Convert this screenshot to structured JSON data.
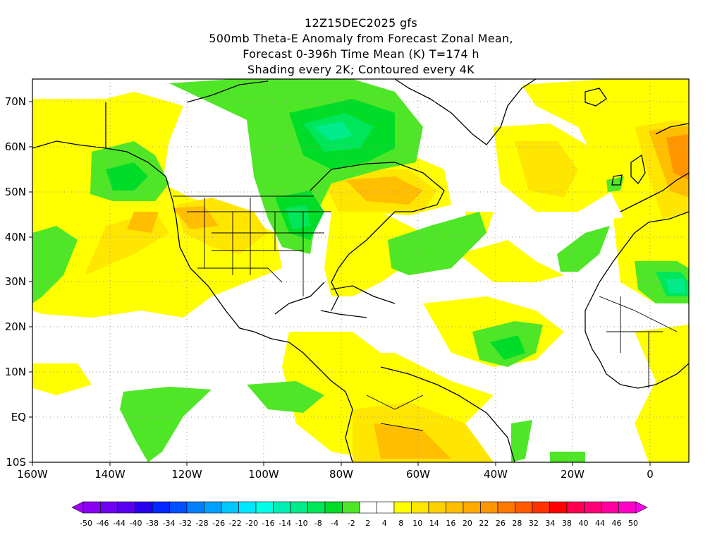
{
  "title": {
    "line1": "12Z15DEC2025 gfs",
    "line2": "500mb Theta-E Anomaly from Forecast Zonal Mean,",
    "line3": "Forecast 0-396h Time Mean (K) T=174 h",
    "line4": "Shading every 2K; Contoured every 4K"
  },
  "map": {
    "lon_range": [
      -160,
      10
    ],
    "lat_range": [
      -10,
      75
    ],
    "x_ticks": [
      "160W",
      "140W",
      "120W",
      "100W",
      "80W",
      "60W",
      "40W",
      "20W",
      "0"
    ],
    "y_ticks": [
      "10S",
      "EQ",
      "10N",
      "20N",
      "30N",
      "40N",
      "50N",
      "60N",
      "70N"
    ],
    "grid": "dotted"
  },
  "colorbar": {
    "labels": [
      "-50",
      "-46",
      "-44",
      "-40",
      "-38",
      "-34",
      "-32",
      "-28",
      "-26",
      "-22",
      "-20",
      "-16",
      "-14",
      "-10",
      "-8",
      "-4",
      "-2",
      "2",
      "4",
      "8",
      "10",
      "14",
      "16",
      "20",
      "22",
      "26",
      "28",
      "32",
      "34",
      "38",
      "40",
      "44",
      "46",
      "50"
    ],
    "colors": [
      "#a000ff",
      "#8a00f0",
      "#7000f0",
      "#5a00f0",
      "#2800ef",
      "#0028ff",
      "#0050ff",
      "#0080ff",
      "#00a0ff",
      "#00c8ff",
      "#00e6ff",
      "#00ffe6",
      "#00f0b4",
      "#00ec8c",
      "#00e65a",
      "#00dc28",
      "#50e628",
      "#ffffff",
      "#ffffff",
      "#ffff00",
      "#ffe600",
      "#ffd000",
      "#ffbe00",
      "#ffaa00",
      "#ff9600",
      "#ff7800",
      "#ff5a00",
      "#ff3200",
      "#ff0000",
      "#ff0050",
      "#ff0078",
      "#ff00a0",
      "#ff00c8",
      "#ff00f0"
    ]
  }
}
